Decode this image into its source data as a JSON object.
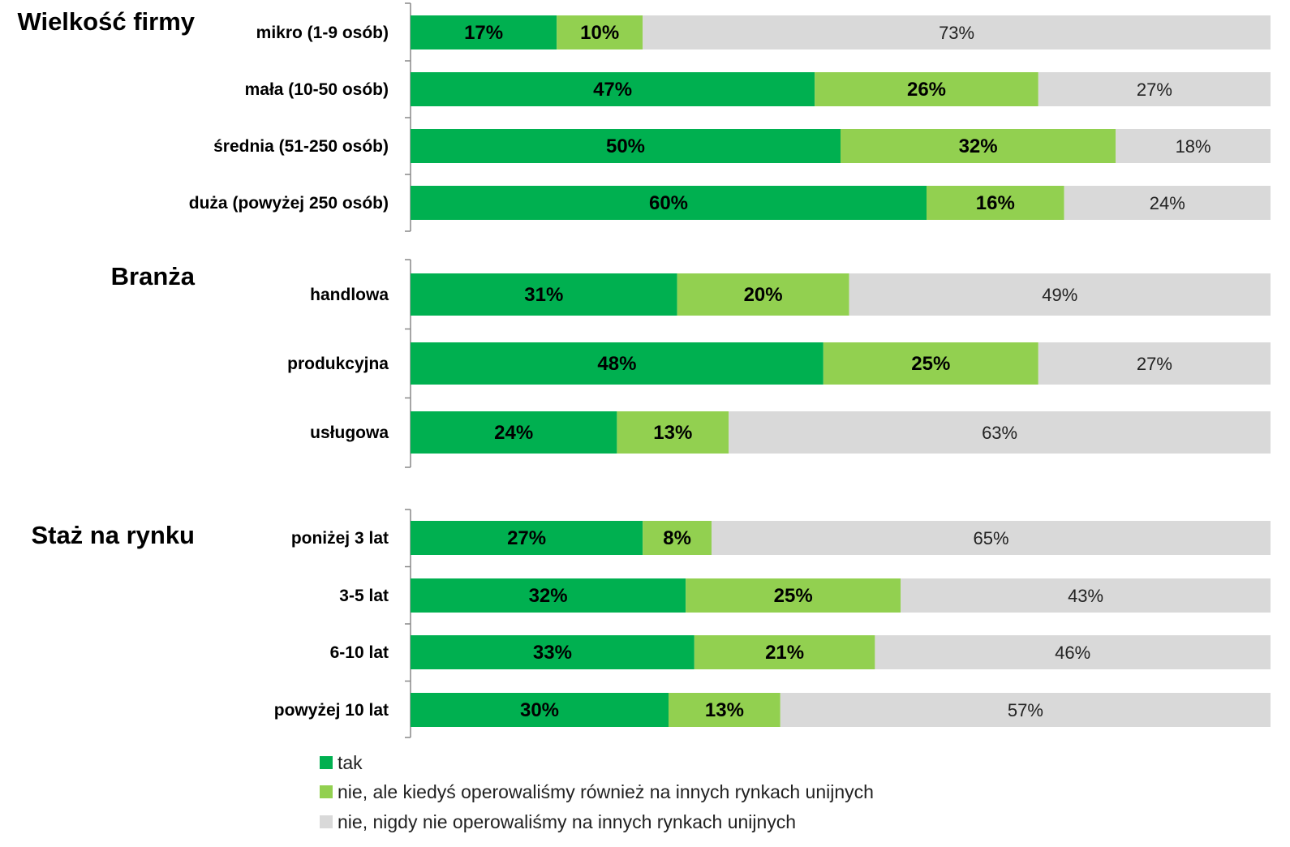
{
  "chart_data": {
    "type": "bar",
    "stacked": true,
    "orientation": "horizontal",
    "xlim": [
      0,
      100
    ],
    "unit": "%",
    "series": [
      {
        "name": "tak",
        "color": "#00b050"
      },
      {
        "name": "nie, ale kiedyś operowaliśmy również na innych rynkach unijnych",
        "color": "#92d050"
      },
      {
        "name": "nie, nigdy nie operowaliśmy na innych rynkach unijnych",
        "color": "#d9d9d9"
      }
    ],
    "groups": [
      {
        "title": "Wielkość firmy",
        "rows": [
          {
            "label": "mikro (1-9 osób)",
            "values": [
              17,
              10,
              73
            ]
          },
          {
            "label": "mała (10-50 osób)",
            "values": [
              47,
              26,
              27
            ]
          },
          {
            "label": "średnia (51-250 osób)",
            "values": [
              50,
              32,
              18
            ]
          },
          {
            "label": "duża (powyżej 250 osób)",
            "values": [
              60,
              16,
              24
            ]
          }
        ]
      },
      {
        "title": "Branża",
        "rows": [
          {
            "label": "handlowa",
            "values": [
              31,
              20,
              49
            ]
          },
          {
            "label": "produkcyjna",
            "values": [
              48,
              25,
              27
            ]
          },
          {
            "label": "usługowa",
            "values": [
              24,
              13,
              63
            ]
          }
        ]
      },
      {
        "title": "Staż na rynku",
        "rows": [
          {
            "label": "poniżej 3 lat",
            "values": [
              27,
              8,
              65
            ]
          },
          {
            "label": "3-5 lat",
            "values": [
              32,
              25,
              43
            ]
          },
          {
            "label": "6-10 lat",
            "values": [
              33,
              21,
              46
            ]
          },
          {
            "label": "powyżej 10 lat",
            "values": [
              30,
              13,
              57
            ]
          }
        ]
      }
    ],
    "legend_position": "bottom-left"
  }
}
